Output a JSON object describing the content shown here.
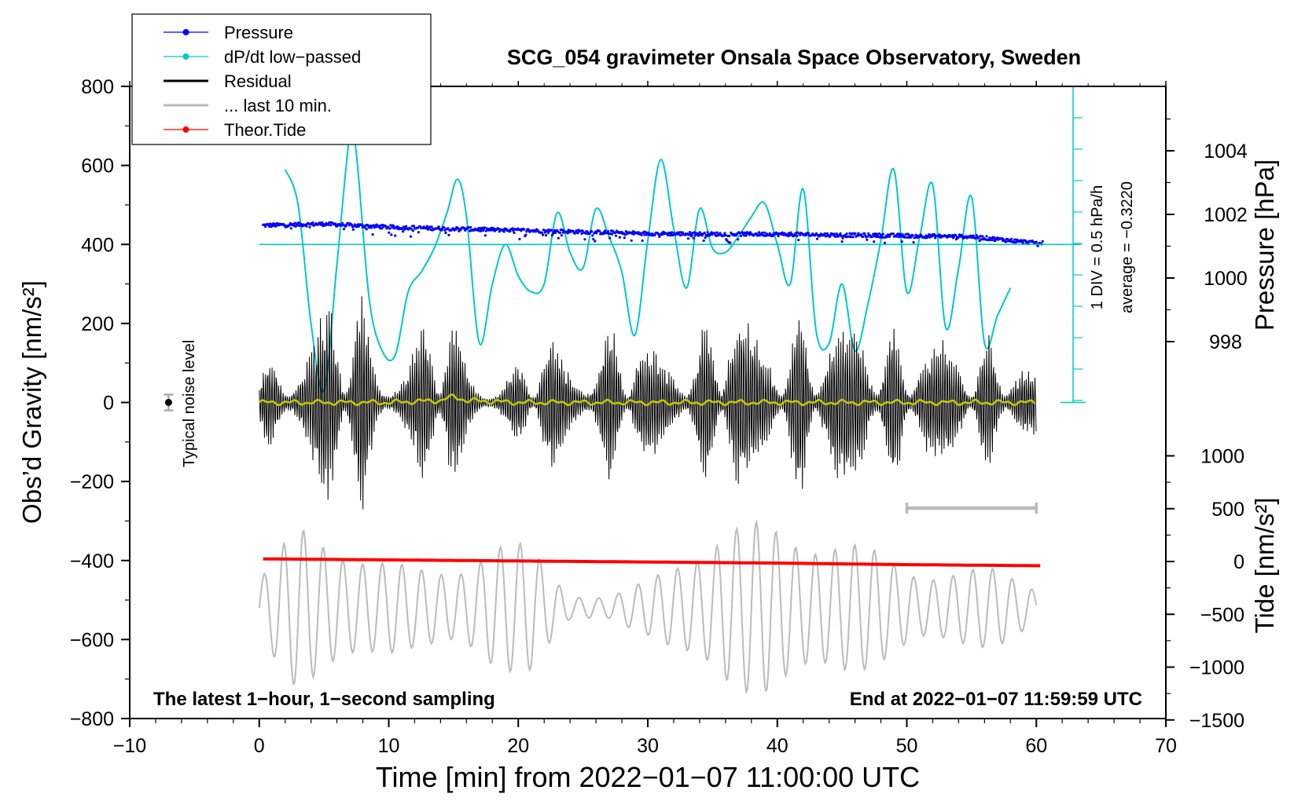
{
  "chart_data": {
    "type": "line",
    "title": "SCG_054 gravimeter Onsala Space Observatory, Sweden",
    "xlabel": "Time [min] from 2022−01−07 11:00:00 UTC",
    "ylabel_left": "Obs’d Gravity [nm/s²]",
    "ylabel_pressure": "Pressure [hPa]",
    "ylabel_tide": "Tide [nm/s²]",
    "xlim": [
      -10,
      70
    ],
    "ylim": [
      -800,
      800
    ],
    "x_ticks": [
      "−10",
      "0",
      "10",
      "20",
      "30",
      "40",
      "50",
      "60",
      "70"
    ],
    "y_ticks": [
      "−800",
      "−600",
      "−400",
      "−200",
      "0",
      "200",
      "400",
      "600",
      "800"
    ],
    "pressure_ticks": [
      "998",
      "1000",
      "1002",
      "1004"
    ],
    "pressure_tick_values": [
      998,
      1000,
      1002,
      1004
    ],
    "tide_ticks": [
      "−1500",
      "−1000",
      "−500",
      "0",
      "500",
      "1000"
    ],
    "tide_tick_values": [
      -1500,
      -1000,
      -500,
      0,
      500,
      1000
    ],
    "legend": [
      {
        "label": "Pressure",
        "color": "#0000ff",
        "marker": true
      },
      {
        "label": "dP/dt low−passed",
        "color": "#00c8c8",
        "marker": true
      },
      {
        "label": "Residual",
        "color": "#000000",
        "marker": false
      },
      {
        "label": "... last 10 min.",
        "color": "#bbbbbb",
        "marker": false
      },
      {
        "label": "Theor.Tide",
        "color": "#ff0000",
        "marker": true
      }
    ],
    "annotations": {
      "bottom_left": "The latest 1−hour, 1−second sampling",
      "bottom_right": "End at 2022−01−07 11:59:59 UTC",
      "noise": "Typical noise level",
      "div_scale": "1 DIV = 0.5 hPa/h",
      "average": "average = −0.3220"
    },
    "noise_level": {
      "x": -7,
      "value": 0,
      "error": 20
    },
    "last10_bar": {
      "x_start": 50,
      "x_end": 60
    },
    "series": [
      {
        "name": "Pressure",
        "color": "#0000ff",
        "axis": "pressure",
        "x": [
          0,
          5,
          10,
          15,
          20,
          25,
          30,
          35,
          40,
          45,
          50,
          55,
          60
        ],
        "values": [
          1001.65,
          1001.7,
          1001.6,
          1001.55,
          1001.5,
          1001.45,
          1001.4,
          1001.38,
          1001.38,
          1001.35,
          1001.33,
          1001.3,
          1001.1
        ]
      },
      {
        "name": "dP/dt low-passed",
        "color": "#00c8c8",
        "axis": "gravity_px",
        "x": [
          2,
          3,
          4,
          5,
          6,
          7,
          7.5,
          8.5,
          9.5,
          10.5,
          11.5,
          12.5,
          13.5,
          14.5,
          15.3,
          16,
          17,
          18,
          19,
          20,
          21,
          22,
          23,
          24,
          25,
          26,
          27,
          28,
          29,
          30,
          31,
          32,
          33,
          34,
          35,
          36,
          37,
          38,
          39,
          40,
          41,
          42,
          43,
          44,
          45,
          46,
          47,
          48,
          49,
          50,
          51,
          52,
          53,
          54,
          55,
          56,
          57,
          58
        ],
        "values": [
          590,
          500,
          200,
          30,
          350,
          680,
          630,
          260,
          130,
          120,
          280,
          330,
          390,
          480,
          565,
          470,
          150,
          300,
          400,
          320,
          280,
          300,
          480,
          380,
          340,
          490,
          420,
          330,
          170,
          410,
          615,
          440,
          290,
          490,
          390,
          380,
          420,
          470,
          505,
          400,
          300,
          540,
          180,
          150,
          300,
          130,
          250,
          410,
          590,
          280,
          420,
          550,
          190,
          340,
          520,
          150,
          220,
          290
        ]
      },
      {
        "name": "Residual",
        "color": "#000000",
        "axis": "gravity",
        "x": [
          0,
          60
        ],
        "amplitude_envelope_x": [
          0,
          2,
          4,
          6,
          8,
          10,
          12,
          14,
          16,
          18,
          20,
          22,
          24,
          26,
          28,
          30,
          32,
          34,
          36,
          38,
          40,
          42,
          44,
          46,
          48,
          50,
          52,
          54,
          56,
          58,
          60
        ],
        "amplitude_envelope": [
          80,
          200,
          240,
          260,
          280,
          170,
          180,
          270,
          160,
          110,
          100,
          170,
          190,
          260,
          180,
          140,
          190,
          210,
          280,
          200,
          220,
          270,
          190,
          230,
          220,
          230,
          180,
          140,
          180,
          210,
          90
        ]
      },
      {
        "name": "Residual low-passed",
        "color": "#c8c800",
        "axis": "gravity",
        "x": [
          0,
          10,
          14,
          15,
          16,
          20,
          30,
          40,
          50,
          60
        ],
        "values": [
          0,
          0,
          5,
          15,
          5,
          0,
          0,
          0,
          0,
          0
        ]
      },
      {
        "name": "... last 10 min.",
        "color": "#bbbbbb",
        "axis": "gravity",
        "center": -520,
        "amplitude_envelope_x": [
          0,
          3,
          6,
          9,
          12,
          15,
          18,
          21,
          24,
          27,
          30,
          33,
          36,
          39,
          42,
          45,
          48,
          51,
          54,
          57,
          60
        ],
        "amplitude_envelope": [
          80,
          210,
          180,
          130,
          100,
          110,
          170,
          160,
          40,
          30,
          70,
          150,
          210,
          220,
          200,
          180,
          140,
          100,
          100,
          100,
          60
        ]
      },
      {
        "name": "Theor.Tide",
        "color": "#ff0000",
        "axis": "tide",
        "x": [
          0,
          10,
          20,
          30,
          40,
          50,
          60
        ],
        "values": [
          25,
          15,
          5,
          -5,
          -15,
          -30,
          -40
        ]
      }
    ]
  }
}
